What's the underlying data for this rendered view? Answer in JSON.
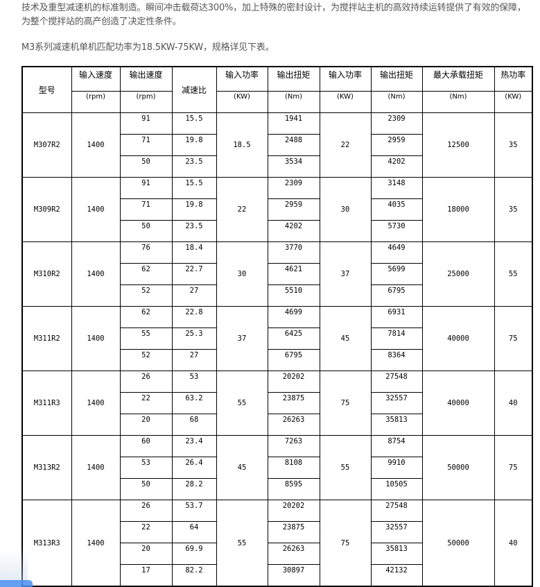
{
  "intro": {
    "line1": "技术及重型减速机的标准制造。瞬间冲击载荷达300%，加上特殊的密封设计，为搅拌站主机的高效持续运转提供了有效的保障，",
    "line2": "为整个搅拌站的高产创造了决定性条件。",
    "line3": "M3系列减速机单机匹配功率为18.5KW-75KW，规格详见下表。"
  },
  "table": {
    "headers": [
      "型号",
      "输入速度",
      "输出速度",
      "减速比",
      "输入功率",
      "输出扭矩",
      "输入功率",
      "输出扭矩",
      "最大承载扭矩",
      "热功率"
    ],
    "units": [
      "(rpm)",
      "(rpm)",
      "(KW)",
      "(Nm)",
      "(KW)",
      "(Nm)",
      "(Nm)",
      "(KW)"
    ],
    "groups": [
      {
        "model": "M307R2",
        "in_speed": "1400",
        "in_power1": "18.5",
        "in_power2": "22",
        "max_torque": "12500",
        "thermal": "35",
        "rows": [
          [
            "91",
            "15.5",
            "1941",
            "2309"
          ],
          [
            "71",
            "19.8",
            "2488",
            "2959"
          ],
          [
            "50",
            "23.5",
            "3534",
            "4202"
          ]
        ]
      },
      {
        "model": "M309R2",
        "in_speed": "1400",
        "in_power1": "22",
        "in_power2": "30",
        "max_torque": "18000",
        "thermal": "35",
        "rows": [
          [
            "91",
            "15.5",
            "2309",
            "3148"
          ],
          [
            "71",
            "19.8",
            "2959",
            "4035"
          ],
          [
            "50",
            "23.5",
            "4202",
            "5730"
          ]
        ]
      },
      {
        "model": "M310R2",
        "in_speed": "1400",
        "in_power1": "30",
        "in_power2": "37",
        "max_torque": "25000",
        "thermal": "55",
        "rows": [
          [
            "76",
            "18.4",
            "3770",
            "4649"
          ],
          [
            "62",
            "22.7",
            "4621",
            "5699"
          ],
          [
            "52",
            "27",
            "5510",
            "6795"
          ]
        ]
      },
      {
        "model": "M311R2",
        "in_speed": "1400",
        "in_power1": "37",
        "in_power2": "45",
        "max_torque": "40000",
        "thermal": "75",
        "rows": [
          [
            "62",
            "22.8",
            "4699",
            "6931"
          ],
          [
            "55",
            "25.3",
            "6425",
            "7814"
          ],
          [
            "52",
            "27",
            "6795",
            "8364"
          ]
        ]
      },
      {
        "model": "M311R3",
        "in_speed": "1400",
        "in_power1": "55",
        "in_power2": "75",
        "max_torque": "40000",
        "thermal": "40",
        "rows": [
          [
            "26",
            "53",
            "20202",
            "27548"
          ],
          [
            "22",
            "63.2",
            "23875",
            "32557"
          ],
          [
            "20",
            "68",
            "26263",
            "35813"
          ]
        ]
      },
      {
        "model": "M313R2",
        "in_speed": "1400",
        "in_power1": "45",
        "in_power2": "55",
        "max_torque": "50000",
        "thermal": "75",
        "rows": [
          [
            "60",
            "23.4",
            "7263",
            "8754"
          ],
          [
            "53",
            "26.4",
            "8108",
            "9910"
          ],
          [
            "50",
            "28.2",
            "8595",
            "10505"
          ]
        ]
      },
      {
        "model": "M313R3",
        "in_speed": "1400",
        "in_power1": "55",
        "in_power2": "75",
        "max_torque": "50000",
        "thermal": "40",
        "rows": [
          [
            "26",
            "53.7",
            "20202",
            "27548"
          ],
          [
            "22",
            "64",
            "23875",
            "32557"
          ],
          [
            "20",
            "69.9",
            "26263",
            "35813"
          ],
          [
            "17",
            "82.2",
            "30897",
            "42132"
          ]
        ]
      }
    ]
  }
}
